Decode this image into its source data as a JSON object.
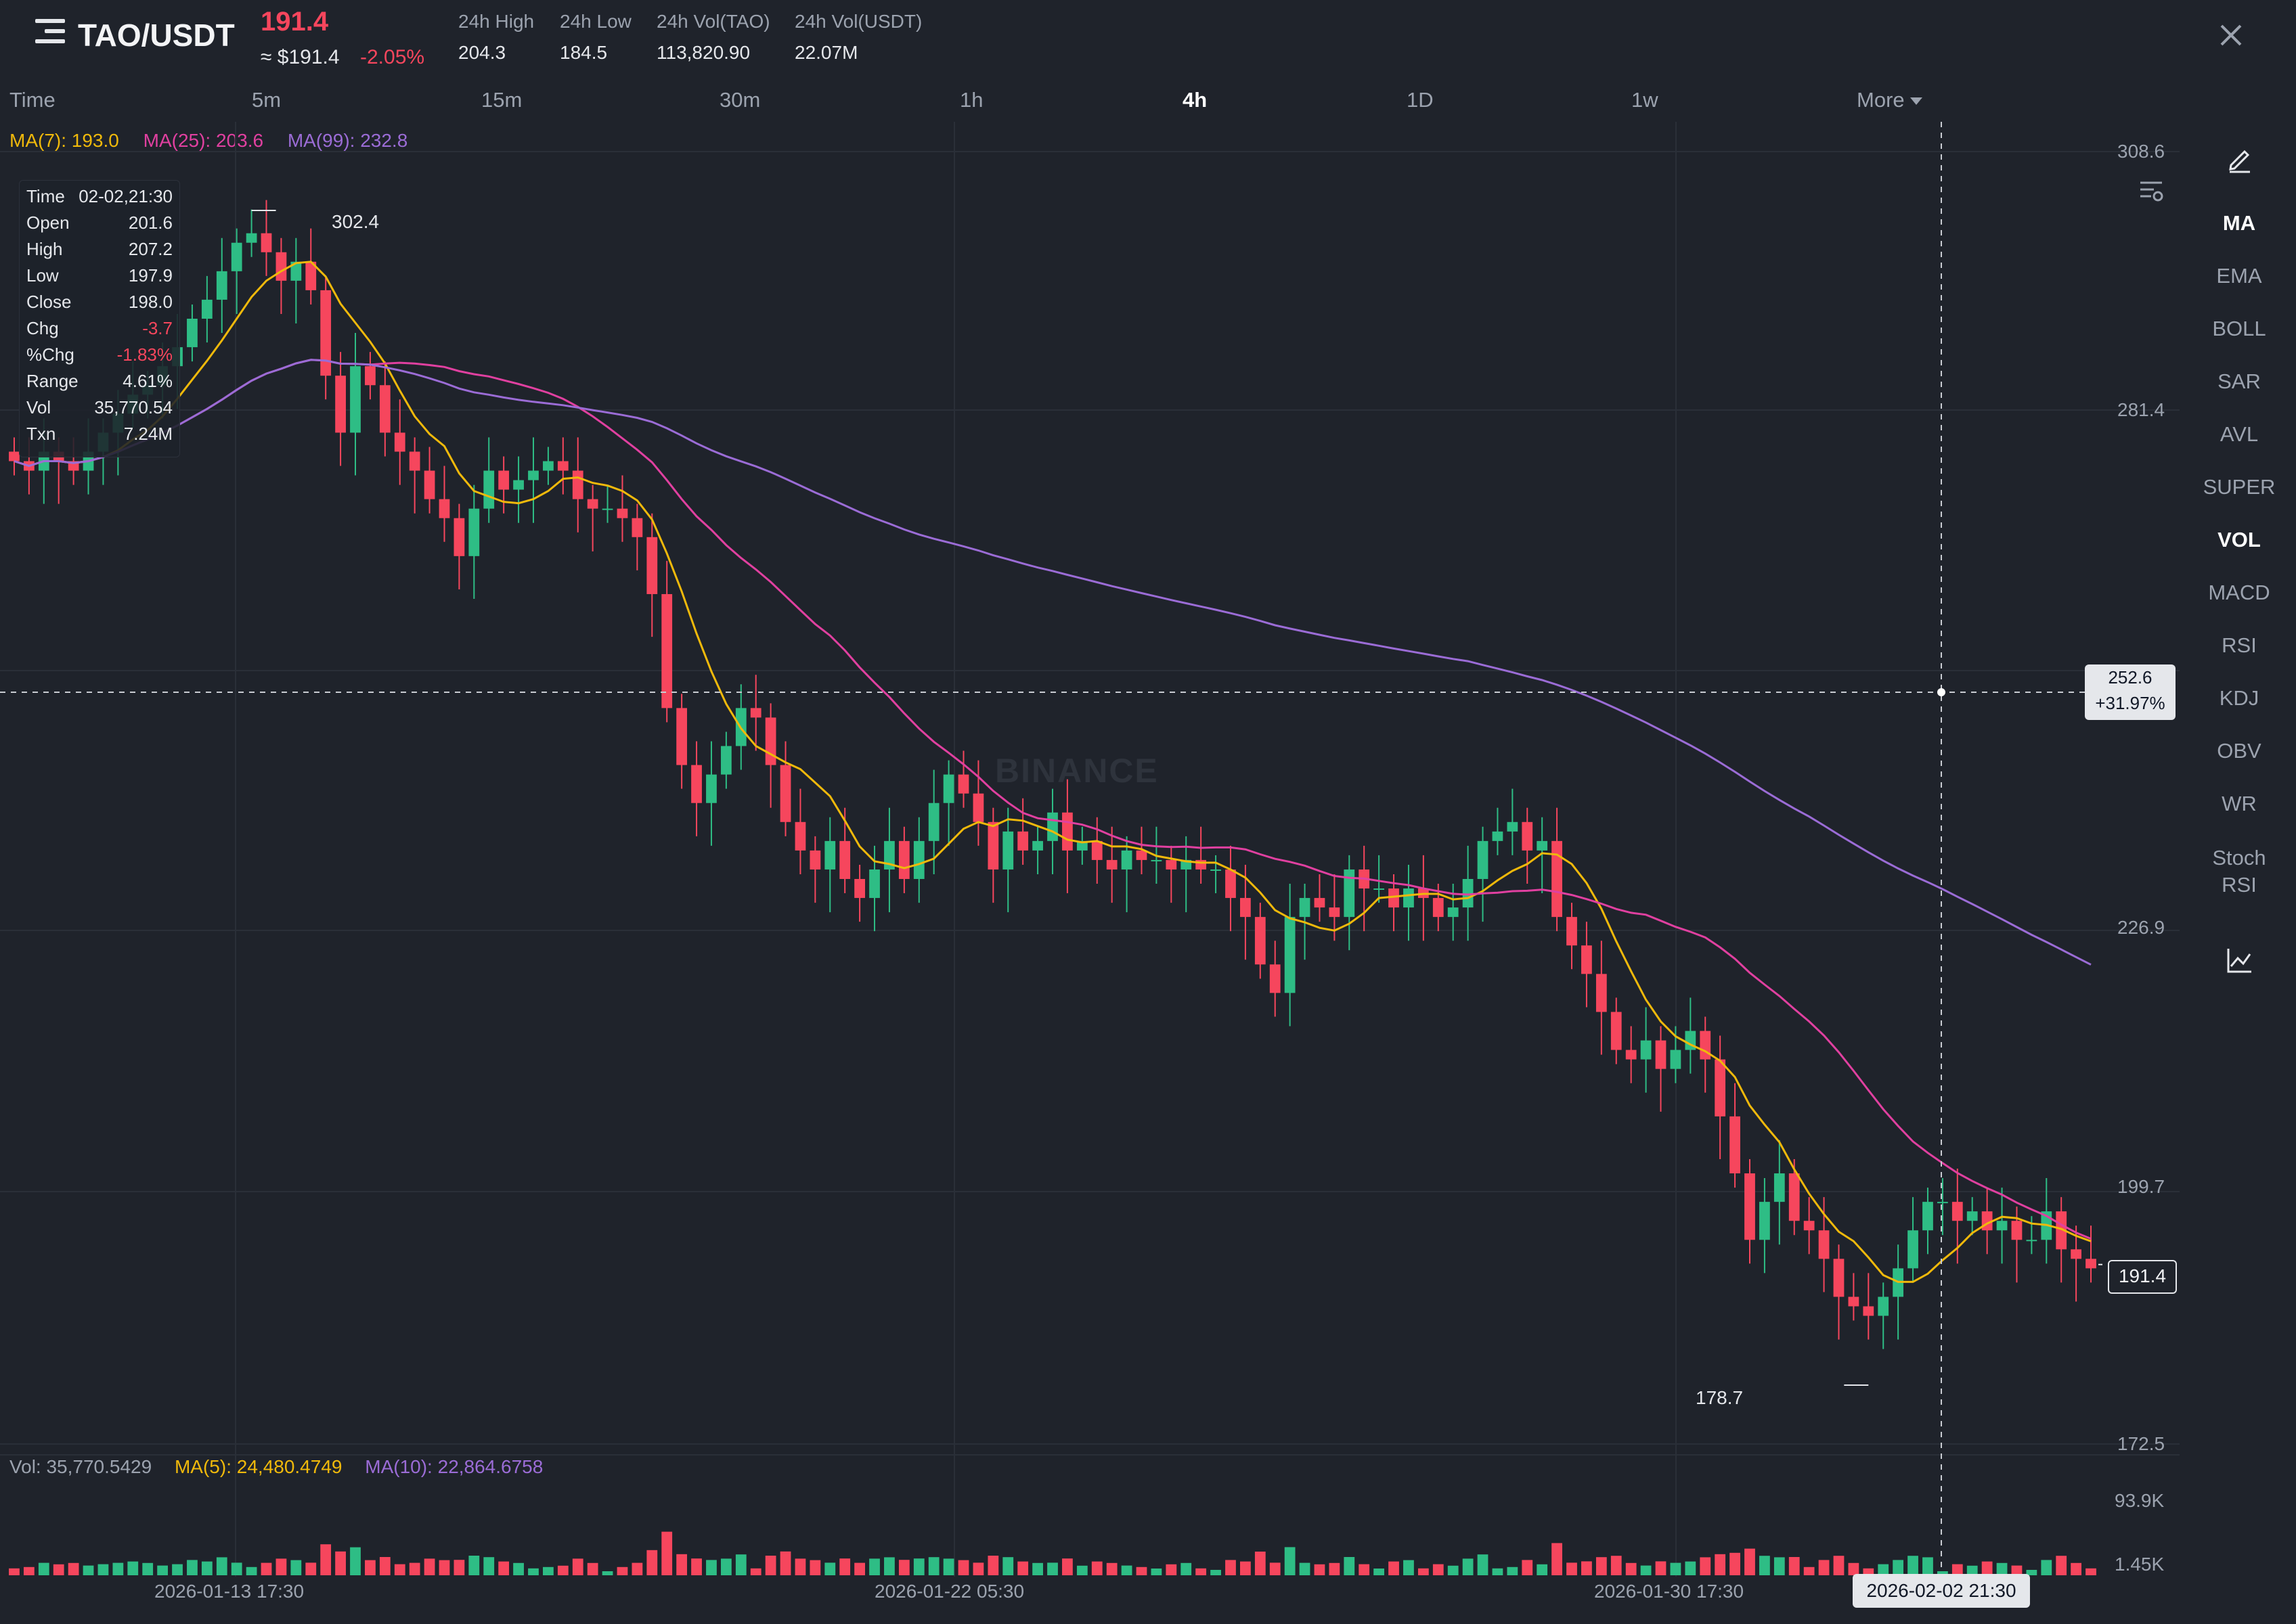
{
  "header": {
    "pair": "TAO/USDT",
    "last_price": "191.4",
    "usd_price": "≈ $191.4",
    "change_pct": "-2.05%",
    "stats": [
      {
        "label": "24h High",
        "value": "204.3"
      },
      {
        "label": "24h Low",
        "value": "184.5"
      },
      {
        "label": "24h Vol(TAO)",
        "value": "113,820.90"
      },
      {
        "label": "24h Vol(USDT)",
        "value": "22.07M"
      }
    ]
  },
  "intervals": {
    "time": "Time",
    "items": [
      "5m",
      "15m",
      "30m",
      "1h",
      "4h",
      "1D",
      "1w"
    ],
    "active": "4h",
    "more": "More"
  },
  "ma_legend": {
    "ma7": "MA(7): 193.0",
    "ma25": "MA(25): 203.6",
    "ma99": "MA(99): 232.8"
  },
  "info_panel": {
    "time_label": "Time",
    "time": "02-02,21:30",
    "open_label": "Open",
    "open": "201.6",
    "high_label": "High",
    "high": "207.2",
    "low_label": "Low",
    "low": "197.9",
    "close_label": "Close",
    "close": "198.0",
    "chg_label": "Chg",
    "chg": "-3.7",
    "pct_label": "%Chg",
    "pct": "-1.83%",
    "range_label": "Range",
    "range": "4.61%",
    "vol_label": "Vol",
    "vol": "35,770.54",
    "txn_label": "Txn",
    "txn": "7.24M"
  },
  "price_axis": {
    "ticks": [
      "308.6",
      "281.4",
      "226.9",
      "199.7",
      "172.5"
    ],
    "last": "191.4",
    "high_label": "302.4",
    "low_label": "178.7"
  },
  "crosshair": {
    "price": "252.6",
    "change": "+31.97%",
    "time": "2026-02-02 21:30"
  },
  "watermark": "BINANCE",
  "volume": {
    "legend": {
      "vol": "Vol: 35,770.5429",
      "ma5": "MA(5): 24,480.4749",
      "ma10": "MA(10): 22,864.6758"
    },
    "ticks": [
      "93.9K",
      "1.45K"
    ]
  },
  "time_axis": [
    "2026-01-13 17:30",
    "2026-01-22 05:30",
    "2026-01-30 17:30"
  ],
  "indicators": {
    "items": [
      "MA",
      "EMA",
      "BOLL",
      "SAR",
      "AVL",
      "SUPER",
      "VOL",
      "MACD",
      "RSI",
      "KDJ",
      "OBV",
      "WR",
      "Stoch RSI"
    ],
    "active": [
      "MA",
      "VOL"
    ]
  },
  "colors": {
    "up": "#2ebd85",
    "down": "#f6465d",
    "ma7": "#f0b90b",
    "ma25": "#e040a0",
    "ma99": "#9b6cd6",
    "bg": "#1f232b"
  },
  "chart_data": {
    "type": "candlestick",
    "interval": "4h",
    "ylim": [
      172.5,
      308.6
    ],
    "candles_close": [
      276,
      275,
      277,
      276,
      275,
      277,
      279,
      281,
      283,
      284,
      286,
      288,
      291,
      293,
      296,
      299,
      300,
      298,
      295,
      297,
      294,
      285,
      279,
      286,
      284,
      279,
      277,
      275,
      272,
      270,
      266,
      271,
      275,
      273,
      274,
      275,
      276,
      275,
      272,
      271,
      271,
      270,
      268,
      262,
      250,
      244,
      240,
      243,
      246,
      250,
      249,
      244,
      238,
      235,
      233,
      236,
      232,
      230,
      233,
      236,
      232,
      236,
      240,
      243,
      241,
      238,
      233,
      237,
      235,
      236,
      239,
      235,
      236,
      234,
      233,
      235,
      234,
      234,
      233,
      234,
      233,
      233,
      230,
      228,
      223,
      220,
      228,
      230,
      229,
      228,
      233,
      231,
      231,
      229,
      231,
      230,
      228,
      229,
      232,
      236,
      237,
      238,
      235,
      236,
      228,
      225,
      222,
      218,
      214,
      213,
      215,
      212,
      214,
      216,
      213,
      207,
      201,
      194,
      198,
      201,
      196,
      195,
      192,
      188,
      187,
      186,
      188,
      191,
      195,
      198,
      198,
      196,
      197,
      195,
      196,
      194,
      194,
      197,
      193,
      192,
      191
    ],
    "ma7_last": 193.0,
    "ma25_last": 203.6,
    "ma99_last": 232.8,
    "period_high": 302.4,
    "period_low": 178.7,
    "volume_ylim": [
      1.45,
      93.9
    ]
  }
}
